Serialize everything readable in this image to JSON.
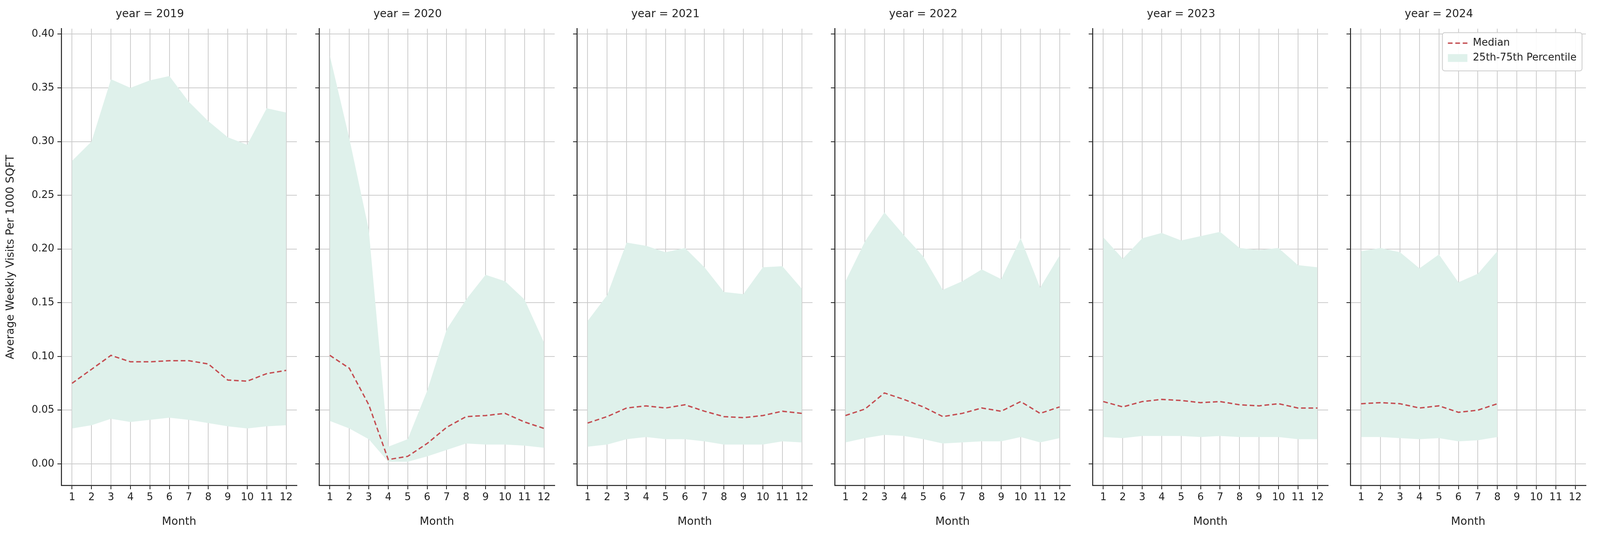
{
  "chart_data": [
    {
      "type": "line",
      "title": "year = 2019",
      "x_label": "Month",
      "y_label": "Average Weekly Visits Per 1000 SQFT",
      "x": [
        1,
        2,
        3,
        4,
        5,
        6,
        7,
        8,
        9,
        10,
        11,
        12
      ],
      "xlim": [
        0.45,
        12.55
      ],
      "xticks": [
        1,
        2,
        3,
        4,
        5,
        6,
        7,
        8,
        9,
        10,
        11,
        12
      ],
      "ylim": [
        -0.02,
        0.405
      ],
      "yticks": [
        {
          "value": 0,
          "label": "0.00"
        },
        {
          "value": 0.05,
          "label": "0.05"
        },
        {
          "value": 0.1,
          "label": "0.10"
        },
        {
          "value": 0.15,
          "label": "0.15"
        },
        {
          "value": 0.2,
          "label": "0.20"
        },
        {
          "value": 0.25,
          "label": "0.25"
        },
        {
          "value": 0.3,
          "label": "0.30"
        },
        {
          "value": 0.35,
          "label": "0.35"
        },
        {
          "value": 0.4,
          "label": "0.40"
        }
      ],
      "grid": true,
      "series": [
        {
          "name": "Median",
          "color": "#c44e52",
          "line_style": "dashed",
          "values": [
            0.075,
            0.088,
            0.101,
            0.095,
            0.095,
            0.096,
            0.096,
            0.093,
            0.078,
            0.077,
            0.084,
            0.087
          ]
        },
        {
          "name": "25th-75th Percentile",
          "type": "band",
          "color": "#dff1eb",
          "lower": [
            0.033,
            0.036,
            0.042,
            0.039,
            0.041,
            0.043,
            0.041,
            0.038,
            0.035,
            0.033,
            0.035,
            0.036
          ],
          "upper": [
            0.282,
            0.3,
            0.358,
            0.35,
            0.357,
            0.361,
            0.337,
            0.319,
            0.304,
            0.297,
            0.331,
            0.327
          ]
        }
      ]
    },
    {
      "type": "line",
      "title": "year = 2020",
      "x_label": "Month",
      "tick_labels": "x",
      "x": [
        1,
        2,
        3,
        4,
        5,
        6,
        7,
        8,
        9,
        10,
        11,
        12
      ],
      "xlim": [
        0.45,
        12.55
      ],
      "xticks": [
        1,
        2,
        3,
        4,
        5,
        6,
        7,
        8,
        9,
        10,
        11,
        12
      ],
      "ylim": [
        -0.02,
        0.405
      ],
      "yticks": [
        {
          "value": 0,
          "label": "0.00"
        },
        {
          "value": 0.05,
          "label": "0.05"
        },
        {
          "value": 0.1,
          "label": "0.10"
        },
        {
          "value": 0.15,
          "label": "0.15"
        },
        {
          "value": 0.2,
          "label": "0.20"
        },
        {
          "value": 0.25,
          "label": "0.25"
        },
        {
          "value": 0.3,
          "label": "0.30"
        },
        {
          "value": 0.35,
          "label": "0.35"
        },
        {
          "value": 0.4,
          "label": "0.40"
        }
      ],
      "grid": true,
      "series": [
        {
          "name": "Median",
          "color": "#c44e52",
          "line_style": "dashed",
          "values": [
            0.101,
            0.089,
            0.055,
            0.004,
            0.007,
            0.019,
            0.034,
            0.044,
            0.045,
            0.047,
            0.039,
            0.033
          ]
        },
        {
          "name": "25th-75th Percentile",
          "type": "band",
          "color": "#dff1eb",
          "lower": [
            0.04,
            0.033,
            0.023,
            0.002,
            0.002,
            0.007,
            0.013,
            0.019,
            0.018,
            0.018,
            0.017,
            0.015
          ],
          "upper": [
            0.38,
            0.303,
            0.218,
            0.016,
            0.023,
            0.068,
            0.125,
            0.153,
            0.176,
            0.17,
            0.153,
            0.113
          ]
        }
      ]
    },
    {
      "type": "line",
      "title": "year = 2021",
      "x_label": "Month",
      "tick_labels": "x",
      "x": [
        1,
        2,
        3,
        4,
        5,
        6,
        7,
        8,
        9,
        10,
        11,
        12
      ],
      "xlim": [
        0.45,
        12.55
      ],
      "xticks": [
        1,
        2,
        3,
        4,
        5,
        6,
        7,
        8,
        9,
        10,
        11,
        12
      ],
      "ylim": [
        -0.02,
        0.405
      ],
      "yticks": [
        {
          "value": 0,
          "label": "0.00"
        },
        {
          "value": 0.05,
          "label": "0.05"
        },
        {
          "value": 0.1,
          "label": "0.10"
        },
        {
          "value": 0.15,
          "label": "0.15"
        },
        {
          "value": 0.2,
          "label": "0.20"
        },
        {
          "value": 0.25,
          "label": "0.25"
        },
        {
          "value": 0.3,
          "label": "0.30"
        },
        {
          "value": 0.35,
          "label": "0.35"
        },
        {
          "value": 0.4,
          "label": "0.40"
        }
      ],
      "grid": true,
      "series": [
        {
          "name": "Median",
          "color": "#c44e52",
          "line_style": "dashed",
          "values": [
            0.038,
            0.044,
            0.052,
            0.054,
            0.052,
            0.055,
            0.049,
            0.044,
            0.043,
            0.045,
            0.049,
            0.047
          ]
        },
        {
          "name": "25th-75th Percentile",
          "type": "band",
          "color": "#dff1eb",
          "lower": [
            0.016,
            0.018,
            0.023,
            0.025,
            0.023,
            0.023,
            0.021,
            0.018,
            0.018,
            0.018,
            0.021,
            0.02
          ],
          "upper": [
            0.133,
            0.157,
            0.206,
            0.203,
            0.197,
            0.201,
            0.183,
            0.16,
            0.158,
            0.183,
            0.184,
            0.163
          ]
        }
      ]
    },
    {
      "type": "line",
      "title": "year = 2022",
      "x_label": "Month",
      "tick_labels": "x",
      "x": [
        1,
        2,
        3,
        4,
        5,
        6,
        7,
        8,
        9,
        10,
        11,
        12
      ],
      "xlim": [
        0.45,
        12.55
      ],
      "xticks": [
        1,
        2,
        3,
        4,
        5,
        6,
        7,
        8,
        9,
        10,
        11,
        12
      ],
      "ylim": [
        -0.02,
        0.405
      ],
      "yticks": [
        {
          "value": 0,
          "label": "0.00"
        },
        {
          "value": 0.05,
          "label": "0.05"
        },
        {
          "value": 0.1,
          "label": "0.10"
        },
        {
          "value": 0.15,
          "label": "0.15"
        },
        {
          "value": 0.2,
          "label": "0.20"
        },
        {
          "value": 0.25,
          "label": "0.25"
        },
        {
          "value": 0.3,
          "label": "0.30"
        },
        {
          "value": 0.35,
          "label": "0.35"
        },
        {
          "value": 0.4,
          "label": "0.40"
        }
      ],
      "grid": true,
      "series": [
        {
          "name": "Median",
          "color": "#c44e52",
          "line_style": "dashed",
          "values": [
            0.045,
            0.051,
            0.066,
            0.06,
            0.053,
            0.044,
            0.047,
            0.052,
            0.049,
            0.058,
            0.047,
            0.053
          ]
        },
        {
          "name": "25th-75th Percentile",
          "type": "band",
          "color": "#dff1eb",
          "lower": [
            0.02,
            0.024,
            0.027,
            0.026,
            0.023,
            0.019,
            0.02,
            0.021,
            0.021,
            0.025,
            0.02,
            0.024
          ],
          "upper": [
            0.17,
            0.207,
            0.234,
            0.213,
            0.193,
            0.162,
            0.17,
            0.181,
            0.172,
            0.21,
            0.164,
            0.194
          ]
        }
      ]
    },
    {
      "type": "line",
      "title": "year = 2023",
      "x_label": "Month",
      "tick_labels": "x",
      "x": [
        1,
        2,
        3,
        4,
        5,
        6,
        7,
        8,
        9,
        10,
        11,
        12
      ],
      "xlim": [
        0.45,
        12.55
      ],
      "xticks": [
        1,
        2,
        3,
        4,
        5,
        6,
        7,
        8,
        9,
        10,
        11,
        12
      ],
      "ylim": [
        -0.02,
        0.405
      ],
      "yticks": [
        {
          "value": 0,
          "label": "0.00"
        },
        {
          "value": 0.05,
          "label": "0.05"
        },
        {
          "value": 0.1,
          "label": "0.10"
        },
        {
          "value": 0.15,
          "label": "0.15"
        },
        {
          "value": 0.2,
          "label": "0.20"
        },
        {
          "value": 0.25,
          "label": "0.25"
        },
        {
          "value": 0.3,
          "label": "0.30"
        },
        {
          "value": 0.35,
          "label": "0.35"
        },
        {
          "value": 0.4,
          "label": "0.40"
        }
      ],
      "grid": true,
      "series": [
        {
          "name": "Median",
          "color": "#c44e52",
          "line_style": "dashed",
          "values": [
            0.058,
            0.053,
            0.058,
            0.06,
            0.059,
            0.057,
            0.058,
            0.055,
            0.054,
            0.056,
            0.052,
            0.052
          ]
        },
        {
          "name": "25th-75th Percentile",
          "type": "band",
          "color": "#dff1eb",
          "lower": [
            0.025,
            0.024,
            0.026,
            0.026,
            0.026,
            0.025,
            0.026,
            0.025,
            0.025,
            0.025,
            0.023,
            0.023
          ],
          "upper": [
            0.211,
            0.191,
            0.21,
            0.215,
            0.208,
            0.212,
            0.216,
            0.201,
            0.199,
            0.201,
            0.185,
            0.183
          ]
        }
      ]
    },
    {
      "type": "line",
      "title": "year = 2024",
      "x_label": "Month",
      "tick_labels": "x",
      "legend": "upper right",
      "x": [
        1,
        2,
        3,
        4,
        5,
        6,
        7,
        8
      ],
      "xlim": [
        0.45,
        12.55
      ],
      "xticks": [
        1,
        2,
        3,
        4,
        5,
        6,
        7,
        8,
        9,
        10,
        11,
        12
      ],
      "ylim": [
        -0.02,
        0.405
      ],
      "yticks": [
        {
          "value": 0,
          "label": "0.00"
        },
        {
          "value": 0.05,
          "label": "0.05"
        },
        {
          "value": 0.1,
          "label": "0.10"
        },
        {
          "value": 0.15,
          "label": "0.15"
        },
        {
          "value": 0.2,
          "label": "0.20"
        },
        {
          "value": 0.25,
          "label": "0.25"
        },
        {
          "value": 0.3,
          "label": "0.30"
        },
        {
          "value": 0.35,
          "label": "0.35"
        },
        {
          "value": 0.4,
          "label": "0.40"
        }
      ],
      "grid": true,
      "series": [
        {
          "name": "Median",
          "color": "#c44e52",
          "line_style": "dashed",
          "values": [
            0.056,
            0.057,
            0.056,
            0.052,
            0.054,
            0.048,
            0.05,
            0.056
          ]
        },
        {
          "name": "25th-75th Percentile",
          "type": "band",
          "color": "#dff1eb",
          "lower": [
            0.025,
            0.025,
            0.024,
            0.023,
            0.024,
            0.021,
            0.022,
            0.025
          ],
          "upper": [
            0.198,
            0.201,
            0.197,
            0.182,
            0.195,
            0.169,
            0.177,
            0.198
          ]
        }
      ]
    }
  ]
}
